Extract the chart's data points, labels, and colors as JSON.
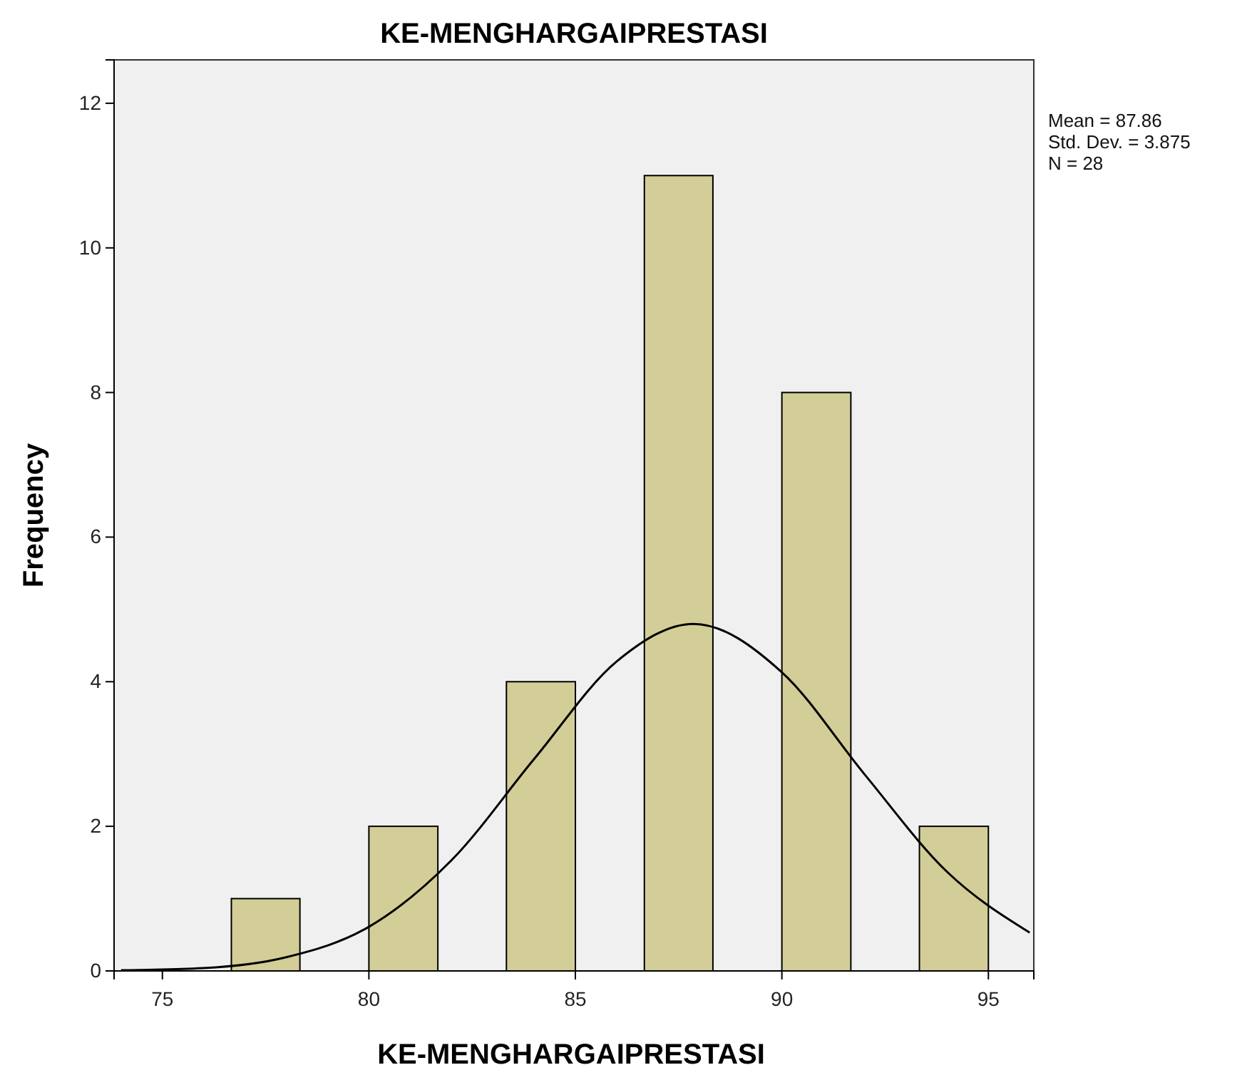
{
  "chart_data": {
    "type": "histogram",
    "title": "KE-MENGHARGAIPRESTASI",
    "xlabel": "KE-MENGHARGAIPRESTASI",
    "ylabel": "Frequency",
    "bins": [
      76.67,
      78.33,
      80,
      81.67,
      83.33,
      85,
      86.67,
      88.33,
      90,
      91.67,
      93.33,
      95
    ],
    "values": [
      1,
      0,
      2,
      0,
      4,
      0,
      11,
      0,
      8,
      0,
      2
    ],
    "color": "#d3ce97",
    "series": [
      {
        "type": "line",
        "color": "#000000",
        "x": [
          74,
          76,
          78,
          80,
          82,
          84,
          86,
          87.86,
          90,
          92,
          94,
          96
        ],
        "values": [
          0.01,
          0.04,
          0.19,
          0.61,
          1.53,
          2.93,
          4.28,
          4.8,
          4.13,
          2.72,
          1.37,
          0.53
        ]
      }
    ],
    "xlim": [
      73.83,
      96.1
    ],
    "xticks": [
      75,
      80,
      85,
      90,
      95
    ],
    "ylim": [
      0,
      12.6
    ],
    "yticks": [
      0,
      2,
      4,
      6,
      8,
      10,
      12
    ],
    "grid": false,
    "marker": "none",
    "line_style": "solid",
    "annotations": [
      "Mean = 87.86",
      "Std. Dev. = 3.875",
      "N = 28"
    ]
  }
}
